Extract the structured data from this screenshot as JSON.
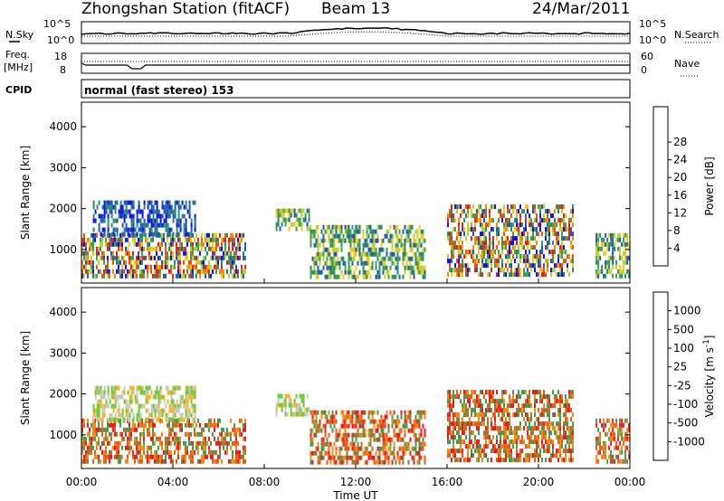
{
  "header": {
    "station": "Zhongshan Station (fitACF)",
    "beam": "Beam 13",
    "date": "24/Mar/2011"
  },
  "top_panels": {
    "nsky_label": "N.Sky",
    "nsky_ticks": [
      "10^5",
      "10^0"
    ],
    "nsearch_label": "N.Search",
    "nsearch_ticks": [
      "10^5",
      "10^0"
    ],
    "freq_label": "Freq.",
    "freq_unit": "[MHz]",
    "freq_ticks": [
      "18",
      "8"
    ],
    "nave_label": "Nave",
    "nave_ticks": [
      "60",
      "0"
    ],
    "cpid_label": "CPID",
    "cpid_text": "normal (fast stereo) 153"
  },
  "chart_data": [
    {
      "type": "heatmap",
      "name": "power-panel",
      "ylabel": "Slant Range [km]",
      "ylim": [
        180,
        4600
      ],
      "yticks": [
        1000,
        2000,
        3000,
        4000
      ],
      "xlim": [
        0,
        24
      ],
      "colorbar": {
        "label": "Power [dB]",
        "ticks": [
          "4",
          "8",
          "12",
          "16",
          "20",
          "24",
          "28"
        ],
        "colors": [
          "#0a14e6",
          "#1e5ab4",
          "#2a8a6e",
          "#3ca050",
          "#b4d232",
          "#f0c814",
          "#f08c00",
          "#f05000",
          "#e61e1e"
        ]
      },
      "echo_regions": [
        {
          "t0": 0.0,
          "t1": 7.2,
          "r0": 350,
          "r1": 1400,
          "level": "mixed-high"
        },
        {
          "t0": 0.5,
          "t1": 5.0,
          "r0": 1400,
          "r1": 2200,
          "level": "low"
        },
        {
          "t0": 8.5,
          "t1": 10.0,
          "r0": 1500,
          "r1": 2000,
          "level": "mid"
        },
        {
          "t0": 10.0,
          "t1": 15.0,
          "r0": 300,
          "r1": 1600,
          "level": "mid"
        },
        {
          "t0": 16.0,
          "t1": 21.5,
          "r0": 400,
          "r1": 2100,
          "level": "mixed-high"
        },
        {
          "t0": 22.5,
          "t1": 24.0,
          "r0": 350,
          "r1": 1400,
          "level": "mid"
        }
      ]
    },
    {
      "type": "heatmap",
      "name": "velocity-panel",
      "ylabel": "Slant Range [km]",
      "xlabel": "Time UT",
      "ylim": [
        180,
        4600
      ],
      "yticks": [
        1000,
        2000,
        3000,
        4000
      ],
      "xlim": [
        0,
        24
      ],
      "xticks": [
        "00:00",
        "04:00",
        "08:00",
        "12:00",
        "16:00",
        "20:00",
        "00:00"
      ],
      "colorbar": {
        "label": "Velocity [m s",
        "label_sup": "-1",
        "label_end": "]",
        "ticks": [
          "1000",
          "500",
          "100",
          "25",
          "-25",
          "-100",
          "-500",
          "-1000"
        ],
        "colors": [
          "#1e50c8",
          "#2e8a70",
          "#3c9e50",
          "#6ec83c",
          "#c8c8c0",
          "#f0b41e",
          "#f08c14",
          "#f05a14",
          "#e61e1e"
        ]
      },
      "echo_regions": [
        {
          "t0": 0.0,
          "t1": 7.2,
          "r0": 350,
          "r1": 1400,
          "level": "negative"
        },
        {
          "t0": 0.5,
          "t1": 5.0,
          "r0": 1400,
          "r1": 2200,
          "level": "near-zero"
        },
        {
          "t0": 8.5,
          "t1": 10.0,
          "r0": 1500,
          "r1": 2000,
          "level": "near-zero"
        },
        {
          "t0": 10.0,
          "t1": 15.0,
          "r0": 300,
          "r1": 1600,
          "level": "negative"
        },
        {
          "t0": 16.0,
          "t1": 21.5,
          "r0": 400,
          "r1": 2100,
          "level": "negative"
        },
        {
          "t0": 22.5,
          "t1": 24.0,
          "r0": 350,
          "r1": 1400,
          "level": "negative"
        }
      ]
    }
  ]
}
